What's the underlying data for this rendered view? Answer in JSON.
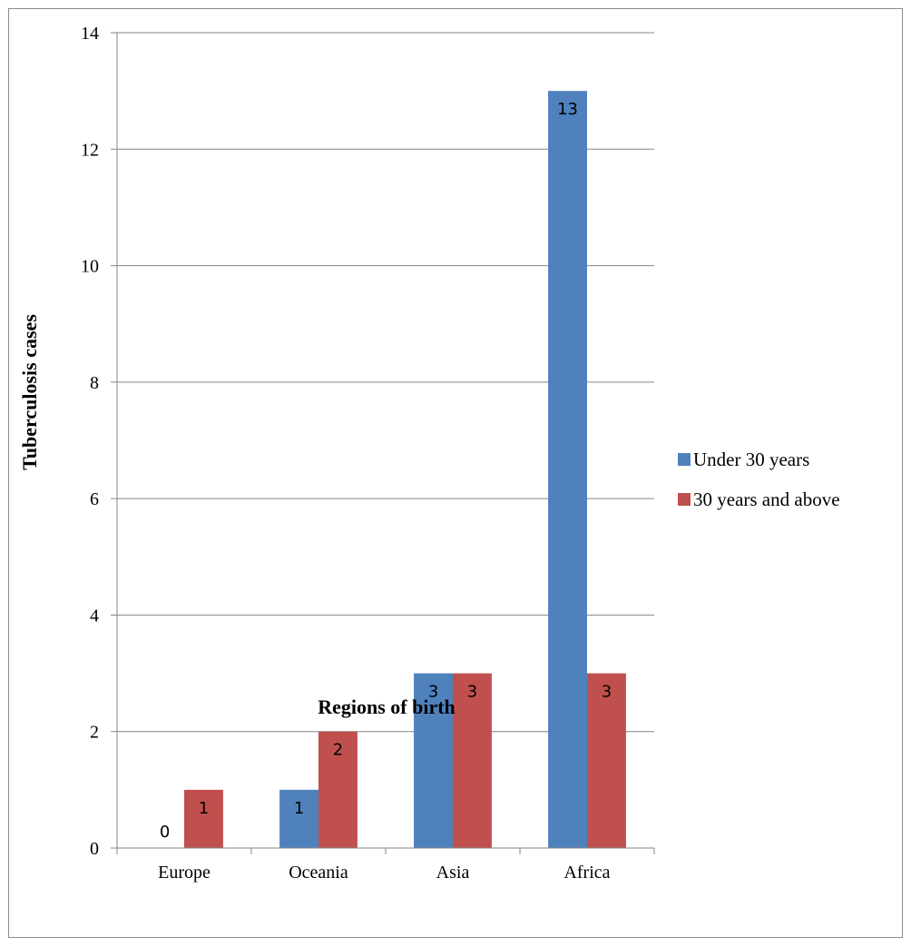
{
  "chart_data": {
    "type": "bar",
    "categories": [
      "Europe",
      "Oceania",
      "Asia",
      "Africa"
    ],
    "series": [
      {
        "name": "Under 30 years",
        "values": [
          0,
          1,
          3,
          13
        ],
        "color": "#4f81bd"
      },
      {
        "name": "30 years and above",
        "values": [
          1,
          2,
          3,
          3
        ],
        "color": "#c0504d"
      }
    ],
    "data_labels": [
      [
        "0",
        "1",
        "3",
        "13"
      ],
      [
        "1",
        "2",
        "3",
        "3"
      ]
    ],
    "title": "",
    "xlabel": "Regions of birth",
    "ylabel": "Tuberculosis cases",
    "ylim": [
      0,
      14
    ],
    "yticks": [
      0,
      2,
      4,
      6,
      8,
      10,
      12,
      14
    ],
    "grid": true,
    "legend_position": "right"
  }
}
